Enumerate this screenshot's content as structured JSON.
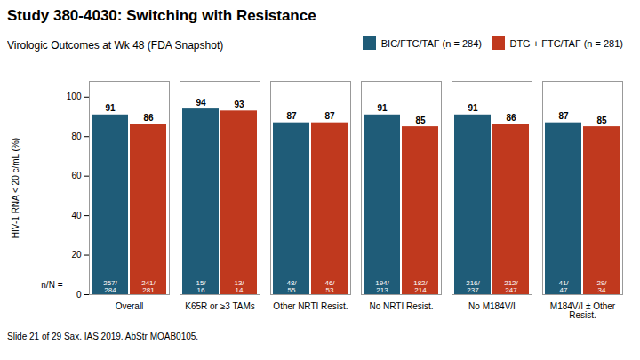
{
  "chart_data": {
    "type": "bar",
    "title": "Study 380-4030: Switching with Resistance",
    "subtitle": "Virologic Outcomes at Wk 48 (FDA Snapshot)",
    "ylabel": "HIV-1 RNA < 20 c/mL (%)",
    "categories": [
      "Overall",
      "K65R or ≥3 TAMs",
      "Other NRTI Resist.",
      "No NRTI Resist.",
      "No M184V/I",
      "M184V/I ± Other\nResist."
    ],
    "series": [
      {
        "name": "BIC/FTC/TAF (n = 284)",
        "color": "#1f5c78",
        "values": [
          91,
          94,
          87,
          91,
          91,
          87
        ],
        "n_labels": [
          "257/\n284",
          "15/\n16",
          "48/\n55",
          "194/\n213",
          "216/\n237",
          "41/\n47"
        ]
      },
      {
        "name": "DTG + FTC/TAF (n = 281)",
        "color": "#c0391e",
        "values": [
          86,
          93,
          87,
          85,
          86,
          85
        ],
        "n_labels": [
          "241/\n281",
          "13/\n14",
          "46/\n53",
          "182/\n214",
          "212/\n247",
          "29/\n34"
        ]
      }
    ],
    "ylim": [
      0,
      108
    ],
    "yticks": [
      0,
      20,
      40,
      60,
      80,
      100
    ],
    "grid": false,
    "legend": "upper right",
    "data_labels": true,
    "annotations": [
      "n/N ="
    ],
    "footer": "Slide 21 of 29    Sax. IAS 2019. AbStr MOAB0105."
  }
}
